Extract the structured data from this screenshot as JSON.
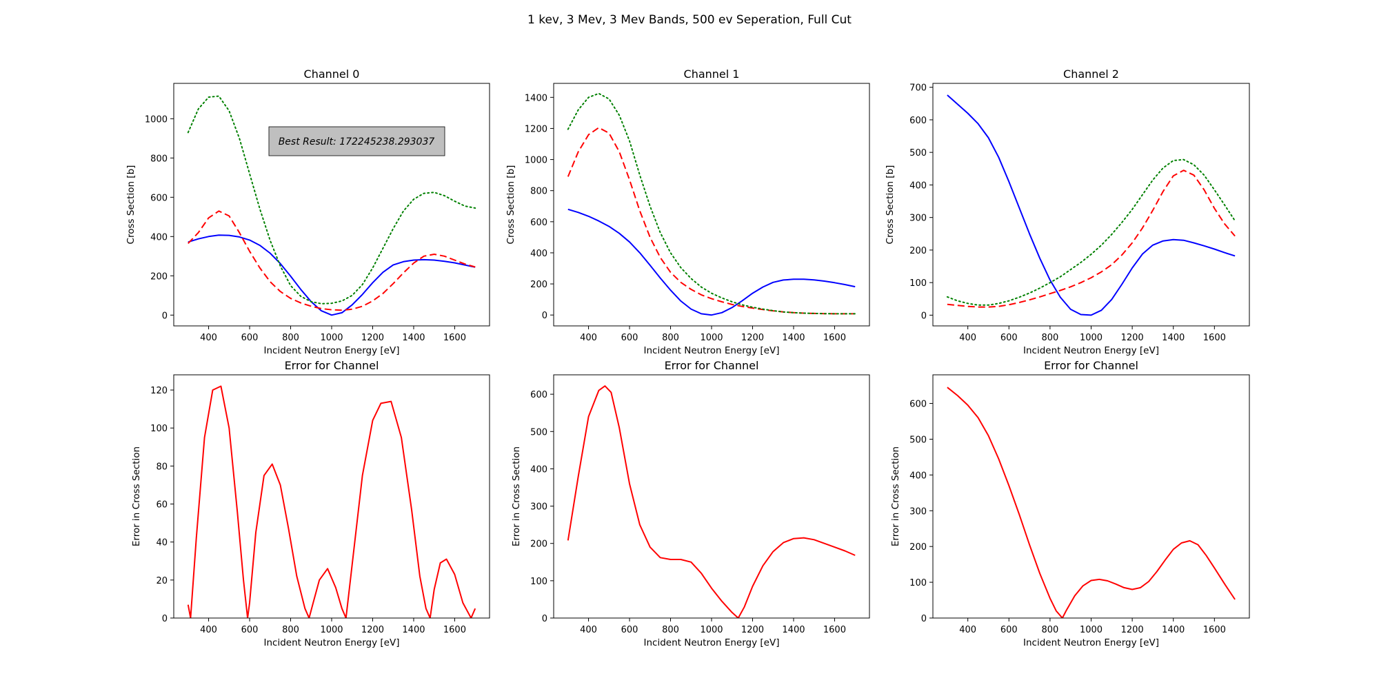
{
  "figure": {
    "suptitle": "1 kev, 3 Mev, 3 Mev Bands, 500 ev Seperation, Full Cut",
    "annotation": "Best Result: 172245238.293037"
  },
  "styles": {
    "blue": "#0000ff",
    "red": "#ff0000",
    "green": "#008000",
    "annotation_fill": "#bfbfbf"
  },
  "chart_data": [
    {
      "type": "line",
      "title": "Channel 0",
      "xlabel": "Incident Neutron Energy [eV]",
      "ylabel": "Cross Section [b]",
      "xlim": [
        230,
        1770
      ],
      "ylim": [
        -55,
        1180
      ],
      "xticks": [
        400,
        600,
        800,
        1000,
        1200,
        1400,
        1600
      ],
      "yticks": [
        0,
        200,
        400,
        600,
        800,
        1000
      ],
      "grid": false,
      "series": [
        {
          "color": "#0000ff",
          "dash": "solid",
          "x": [
            300,
            350,
            400,
            450,
            500,
            550,
            600,
            650,
            700,
            750,
            800,
            850,
            900,
            950,
            1000,
            1050,
            1100,
            1150,
            1200,
            1250,
            1300,
            1350,
            1400,
            1450,
            1500,
            1550,
            1600,
            1650,
            1700
          ],
          "y": [
            372,
            388,
            400,
            407,
            406,
            398,
            382,
            355,
            315,
            262,
            198,
            130,
            68,
            22,
            0,
            12,
            52,
            105,
            165,
            218,
            255,
            272,
            280,
            282,
            280,
            274,
            266,
            255,
            244
          ]
        },
        {
          "color": "#ff0000",
          "dash": "dashed",
          "x": [
            300,
            350,
            400,
            450,
            500,
            550,
            600,
            650,
            700,
            750,
            800,
            850,
            900,
            950,
            1000,
            1050,
            1100,
            1150,
            1200,
            1250,
            1300,
            1350,
            1400,
            1450,
            1500,
            1550,
            1600,
            1650,
            1700
          ],
          "y": [
            365,
            420,
            495,
            530,
            505,
            420,
            325,
            240,
            170,
            120,
            85,
            62,
            45,
            33,
            27,
            25,
            30,
            45,
            72,
            110,
            160,
            215,
            265,
            300,
            310,
            300,
            280,
            260,
            245
          ]
        },
        {
          "color": "#008000",
          "dash": "dotted",
          "x": [
            300,
            350,
            400,
            450,
            500,
            550,
            600,
            650,
            700,
            750,
            800,
            850,
            900,
            950,
            1000,
            1050,
            1100,
            1150,
            1200,
            1250,
            1300,
            1350,
            1400,
            1450,
            1500,
            1550,
            1600,
            1650,
            1700
          ],
          "y": [
            930,
            1050,
            1110,
            1115,
            1040,
            900,
            720,
            540,
            380,
            250,
            150,
            95,
            68,
            58,
            60,
            72,
            100,
            155,
            240,
            340,
            440,
            530,
            590,
            620,
            625,
            608,
            580,
            555,
            545
          ]
        }
      ]
    },
    {
      "type": "line",
      "title": "Channel 1",
      "xlabel": "Incident Neutron Energy [eV]",
      "ylabel": "Cross Section [b]",
      "xlim": [
        230,
        1770
      ],
      "ylim": [
        -70,
        1490
      ],
      "xticks": [
        400,
        600,
        800,
        1000,
        1200,
        1400,
        1600
      ],
      "yticks": [
        0,
        200,
        400,
        600,
        800,
        1000,
        1200,
        1400
      ],
      "grid": false,
      "series": [
        {
          "color": "#0000ff",
          "dash": "solid",
          "x": [
            300,
            350,
            400,
            450,
            500,
            550,
            600,
            650,
            700,
            750,
            800,
            850,
            900,
            950,
            1000,
            1050,
            1100,
            1150,
            1200,
            1250,
            1300,
            1350,
            1400,
            1450,
            1500,
            1550,
            1600,
            1650,
            1700
          ],
          "y": [
            680,
            660,
            635,
            605,
            570,
            525,
            470,
            400,
            320,
            238,
            160,
            90,
            38,
            8,
            0,
            15,
            48,
            92,
            140,
            180,
            210,
            225,
            230,
            230,
            226,
            218,
            208,
            196,
            182
          ]
        },
        {
          "color": "#ff0000",
          "dash": "dashed",
          "x": [
            300,
            350,
            400,
            450,
            500,
            550,
            600,
            650,
            700,
            750,
            800,
            850,
            900,
            950,
            1000,
            1050,
            1100,
            1150,
            1200,
            1250,
            1300,
            1350,
            1400,
            1450,
            1500,
            1550,
            1600,
            1650,
            1700
          ],
          "y": [
            890,
            1050,
            1160,
            1205,
            1170,
            1050,
            870,
            670,
            500,
            370,
            275,
            210,
            165,
            130,
            105,
            85,
            68,
            55,
            45,
            35,
            27,
            20,
            15,
            12,
            10,
            9,
            8,
            8,
            8
          ]
        },
        {
          "color": "#008000",
          "dash": "dotted",
          "x": [
            300,
            350,
            400,
            450,
            500,
            550,
            600,
            650,
            700,
            750,
            800,
            850,
            900,
            950,
            1000,
            1050,
            1100,
            1150,
            1200,
            1250,
            1300,
            1350,
            1400,
            1450,
            1500,
            1550,
            1600,
            1650,
            1700
          ],
          "y": [
            1195,
            1320,
            1400,
            1425,
            1390,
            1285,
            1120,
            900,
            700,
            530,
            400,
            305,
            235,
            180,
            140,
            110,
            85,
            65,
            50,
            38,
            28,
            20,
            15,
            12,
            10,
            9,
            8,
            8,
            8
          ]
        }
      ]
    },
    {
      "type": "line",
      "title": "Channel 2",
      "xlabel": "Incident Neutron Energy [eV]",
      "ylabel": "Cross Section [b]",
      "xlim": [
        230,
        1770
      ],
      "ylim": [
        -33,
        712
      ],
      "xticks": [
        400,
        600,
        800,
        1000,
        1200,
        1400,
        1600
      ],
      "yticks": [
        0,
        100,
        200,
        300,
        400,
        500,
        600,
        700
      ],
      "grid": false,
      "series": [
        {
          "color": "#0000ff",
          "dash": "solid",
          "x": [
            300,
            350,
            400,
            450,
            500,
            550,
            600,
            650,
            700,
            750,
            800,
            850,
            900,
            950,
            1000,
            1050,
            1100,
            1150,
            1200,
            1250,
            1300,
            1350,
            1400,
            1450,
            1500,
            1550,
            1600,
            1650,
            1700
          ],
          "y": [
            676,
            648,
            620,
            588,
            545,
            485,
            410,
            330,
            250,
            175,
            108,
            55,
            18,
            2,
            0,
            15,
            48,
            95,
            145,
            188,
            215,
            228,
            232,
            230,
            222,
            213,
            203,
            192,
            182
          ]
        },
        {
          "color": "#ff0000",
          "dash": "dashed",
          "x": [
            300,
            350,
            400,
            450,
            500,
            550,
            600,
            650,
            700,
            750,
            800,
            850,
            900,
            950,
            1000,
            1050,
            1100,
            1150,
            1200,
            1250,
            1300,
            1350,
            1400,
            1450,
            1500,
            1550,
            1600,
            1650,
            1700
          ],
          "y": [
            33,
            30,
            27,
            25,
            25,
            27,
            32,
            39,
            47,
            56,
            66,
            76,
            87,
            100,
            115,
            133,
            155,
            185,
            222,
            268,
            322,
            380,
            428,
            445,
            430,
            385,
            328,
            280,
            243
          ]
        },
        {
          "color": "#008000",
          "dash": "dotted",
          "x": [
            300,
            350,
            400,
            450,
            500,
            550,
            600,
            650,
            700,
            750,
            800,
            850,
            900,
            950,
            1000,
            1050,
            1100,
            1150,
            1200,
            1250,
            1300,
            1350,
            1400,
            1450,
            1500,
            1550,
            1600,
            1650,
            1700
          ],
          "y": [
            56,
            44,
            36,
            31,
            31,
            36,
            44,
            55,
            68,
            83,
            100,
            118,
            140,
            162,
            187,
            215,
            248,
            285,
            325,
            370,
            415,
            452,
            475,
            478,
            462,
            430,
            385,
            338,
            290
          ]
        }
      ]
    },
    {
      "type": "line",
      "title": "Error for Channel",
      "xlabel": "Incident Neutron Energy [eV]",
      "ylabel": "Error in Cross Section",
      "xlim": [
        230,
        1770
      ],
      "ylim": [
        0,
        128
      ],
      "xticks": [
        400,
        600,
        800,
        1000,
        1200,
        1400,
        1600
      ],
      "yticks": [
        0,
        20,
        40,
        60,
        80,
        100,
        120
      ],
      "grid": false,
      "series": [
        {
          "color": "#ff0000",
          "dash": "solid",
          "x": [
            300,
            312,
            340,
            380,
            420,
            460,
            500,
            540,
            570,
            590,
            600,
            630,
            670,
            710,
            750,
            790,
            830,
            870,
            890,
            910,
            940,
            980,
            1020,
            1050,
            1070,
            1100,
            1150,
            1200,
            1240,
            1290,
            1340,
            1390,
            1430,
            1460,
            1480,
            1500,
            1530,
            1560,
            1600,
            1640,
            1680,
            1700
          ],
          "y": [
            7,
            0,
            42,
            95,
            120,
            122,
            100,
            56,
            20,
            0,
            8,
            45,
            75,
            81,
            70,
            47,
            22,
            5,
            0,
            8,
            20,
            26,
            16,
            5,
            0,
            28,
            75,
            104,
            113,
            114,
            95,
            57,
            22,
            5,
            0,
            15,
            29,
            31,
            23,
            8,
            0,
            5
          ]
        }
      ]
    },
    {
      "type": "line",
      "title": "Error for Channel",
      "xlabel": "Incident Neutron Energy [eV]",
      "ylabel": "Error in Cross Section",
      "xlim": [
        230,
        1770
      ],
      "ylim": [
        0,
        652
      ],
      "xticks": [
        400,
        600,
        800,
        1000,
        1200,
        1400,
        1600
      ],
      "yticks": [
        0,
        100,
        200,
        300,
        400,
        500,
        600
      ],
      "grid": false,
      "series": [
        {
          "color": "#ff0000",
          "dash": "solid",
          "x": [
            300,
            350,
            400,
            450,
            480,
            510,
            550,
            600,
            650,
            700,
            750,
            800,
            850,
            900,
            950,
            1000,
            1050,
            1100,
            1130,
            1160,
            1200,
            1250,
            1300,
            1350,
            1400,
            1450,
            1500,
            1550,
            1600,
            1650,
            1700
          ],
          "y": [
            208,
            380,
            540,
            610,
            622,
            605,
            510,
            360,
            250,
            190,
            162,
            157,
            157,
            150,
            120,
            80,
            45,
            15,
            0,
            30,
            85,
            140,
            178,
            202,
            213,
            215,
            210,
            200,
            190,
            180,
            168
          ]
        }
      ]
    },
    {
      "type": "line",
      "title": "Error for Channel",
      "xlabel": "Incident Neutron Energy [eV]",
      "ylabel": "Error in Cross Section",
      "xlim": [
        230,
        1770
      ],
      "ylim": [
        0,
        680
      ],
      "xticks": [
        400,
        600,
        800,
        1000,
        1200,
        1400,
        1600
      ],
      "yticks": [
        0,
        100,
        200,
        300,
        400,
        500,
        600
      ],
      "grid": false,
      "series": [
        {
          "color": "#ff0000",
          "dash": "solid",
          "x": [
            300,
            350,
            400,
            450,
            500,
            550,
            600,
            650,
            700,
            750,
            800,
            830,
            860,
            880,
            920,
            960,
            1000,
            1040,
            1080,
            1120,
            1160,
            1200,
            1240,
            1280,
            1320,
            1360,
            1400,
            1440,
            1480,
            1520,
            1560,
            1600,
            1650,
            1700
          ],
          "y": [
            645,
            622,
            595,
            560,
            510,
            445,
            370,
            290,
            205,
            125,
            55,
            20,
            0,
            22,
            62,
            90,
            105,
            108,
            104,
            95,
            85,
            80,
            85,
            102,
            130,
            162,
            192,
            210,
            216,
            205,
            175,
            140,
            95,
            52
          ]
        }
      ]
    }
  ]
}
